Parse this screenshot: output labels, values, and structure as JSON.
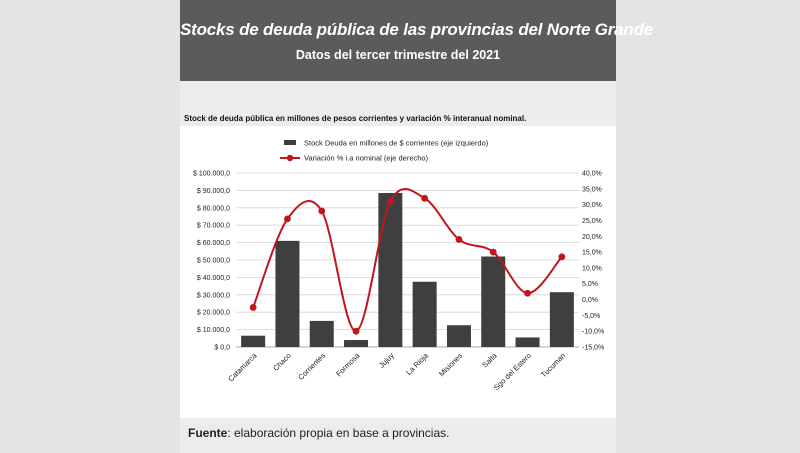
{
  "banner": {
    "title": "Stocks de deuda pública de las provincias del Norte Grande",
    "subtitle": "Datos del tercer trimestre del 2021"
  },
  "caption": "Stock de deuda pública en millones de pesos corrientes y variación % interanual nominal.",
  "source": {
    "label": "Fuente",
    "text": ": elaboración propia en base a provincias."
  },
  "colors": {
    "bars": "#3f3f3f",
    "line": "#c0161c",
    "banner": "#5b5b5b"
  },
  "chart_data": {
    "type": "bar",
    "categories": [
      "Catamarca",
      "Chaco",
      "Corrientes",
      "Formosa",
      "Jujuy",
      "La Rioja",
      "Misiones",
      "Salta",
      "Sgo del Estero",
      "Tucuman"
    ],
    "series": [
      {
        "name": "Stock Deuda en millones de $ corrientes (eje izquierdo)",
        "type": "bar",
        "axis": "left",
        "values": [
          6500,
          61000,
          15000,
          4000,
          88500,
          37500,
          12500,
          52000,
          5500,
          31500
        ]
      },
      {
        "name": "Variación % i.a nominal (eje derecho)",
        "type": "line",
        "axis": "right",
        "values": [
          -2.5,
          25.5,
          28.0,
          -10.0,
          31.0,
          32.0,
          19.0,
          15.0,
          2.0,
          13.5
        ]
      }
    ],
    "left_axis": {
      "min": 0,
      "max": 100000,
      "step": 10000,
      "tick_labels": [
        "$ 0,0",
        "$ 10.000,0",
        "$ 20.000,0",
        "$ 30.000,0",
        "$ 40.000,0",
        "$ 50.000,0",
        "$ 60.000,0",
        "$ 70.000,0",
        "$ 80.000,0",
        "$ 90.000,0",
        "$ 100.000,0"
      ]
    },
    "right_axis": {
      "min": -15,
      "max": 40,
      "step": 5,
      "tick_labels": [
        "-15,0%",
        "-10,0%",
        "-5,0%",
        "0,0%",
        "5,0%",
        "10,0%",
        "15,0%",
        "20,0%",
        "25,0%",
        "30,0%",
        "35,0%",
        "40,0%"
      ]
    },
    "grid": true,
    "legend_position": "top"
  }
}
